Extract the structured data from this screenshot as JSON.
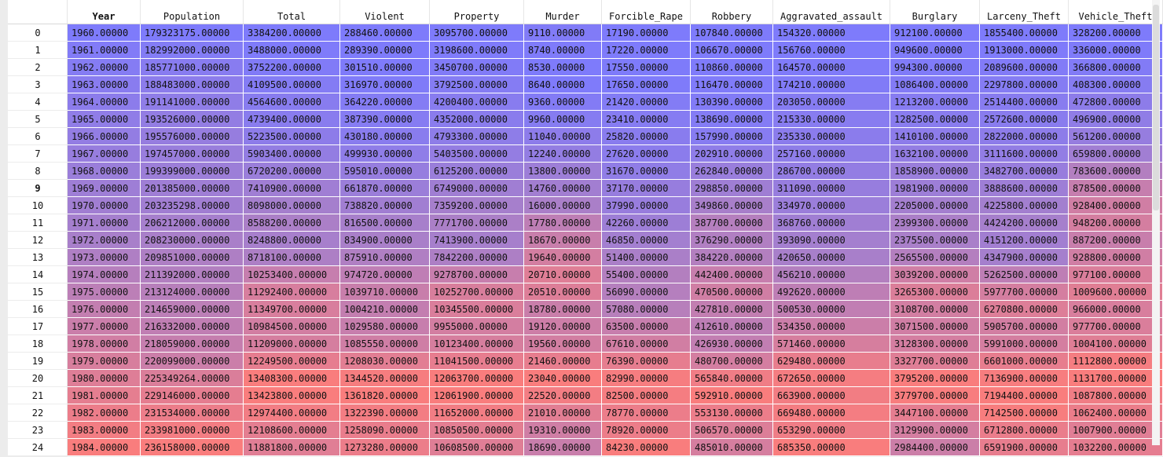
{
  "table": {
    "index_header": "",
    "columns": [
      "Year",
      "Population",
      "Total",
      "Violent",
      "Property",
      "Murder",
      "Forcible_Rape",
      "Robbery",
      "Aggravated_assault",
      "Burglary",
      "Larceny_Theft",
      "Vehicle_Theft"
    ],
    "bold_columns": [
      0
    ],
    "highlighted_row": 9,
    "colors": {
      "low": "#7e7bfb",
      "mid": "#a87fca",
      "high": "#f97d7d"
    },
    "rows": [
      {
        "index": "0",
        "cells": [
          "1960.00000",
          "179323175.00000",
          "3384200.00000",
          "288460.00000",
          "3095700.00000",
          "9110.00000",
          "17190.00000",
          "107840.00000",
          "154320.00000",
          "912100.00000",
          "1855400.00000",
          "328200.00000"
        ]
      },
      {
        "index": "1",
        "cells": [
          "1961.00000",
          "182992000.00000",
          "3488000.00000",
          "289390.00000",
          "3198600.00000",
          "8740.00000",
          "17220.00000",
          "106670.00000",
          "156760.00000",
          "949600.00000",
          "1913000.00000",
          "336000.00000"
        ]
      },
      {
        "index": "2",
        "cells": [
          "1962.00000",
          "185771000.00000",
          "3752200.00000",
          "301510.00000",
          "3450700.00000",
          "8530.00000",
          "17550.00000",
          "110860.00000",
          "164570.00000",
          "994300.00000",
          "2089600.00000",
          "366800.00000"
        ]
      },
      {
        "index": "3",
        "cells": [
          "1963.00000",
          "188483000.00000",
          "4109500.00000",
          "316970.00000",
          "3792500.00000",
          "8640.00000",
          "17650.00000",
          "116470.00000",
          "174210.00000",
          "1086400.00000",
          "2297800.00000",
          "408300.00000"
        ]
      },
      {
        "index": "4",
        "cells": [
          "1964.00000",
          "191141000.00000",
          "4564600.00000",
          "364220.00000",
          "4200400.00000",
          "9360.00000",
          "21420.00000",
          "130390.00000",
          "203050.00000",
          "1213200.00000",
          "2514400.00000",
          "472800.00000"
        ]
      },
      {
        "index": "5",
        "cells": [
          "1965.00000",
          "193526000.00000",
          "4739400.00000",
          "387390.00000",
          "4352000.00000",
          "9960.00000",
          "23410.00000",
          "138690.00000",
          "215330.00000",
          "1282500.00000",
          "2572600.00000",
          "496900.00000"
        ]
      },
      {
        "index": "6",
        "cells": [
          "1966.00000",
          "195576000.00000",
          "5223500.00000",
          "430180.00000",
          "4793300.00000",
          "11040.00000",
          "25820.00000",
          "157990.00000",
          "235330.00000",
          "1410100.00000",
          "2822000.00000",
          "561200.00000"
        ]
      },
      {
        "index": "7",
        "cells": [
          "1967.00000",
          "197457000.00000",
          "5903400.00000",
          "499930.00000",
          "5403500.00000",
          "12240.00000",
          "27620.00000",
          "202910.00000",
          "257160.00000",
          "1632100.00000",
          "3111600.00000",
          "659800.00000"
        ]
      },
      {
        "index": "8",
        "cells": [
          "1968.00000",
          "199399000.00000",
          "6720200.00000",
          "595010.00000",
          "6125200.00000",
          "13800.00000",
          "31670.00000",
          "262840.00000",
          "286700.00000",
          "1858900.00000",
          "3482700.00000",
          "783600.00000"
        ]
      },
      {
        "index": "9",
        "cells": [
          "1969.00000",
          "201385000.00000",
          "7410900.00000",
          "661870.00000",
          "6749000.00000",
          "14760.00000",
          "37170.00000",
          "298850.00000",
          "311090.00000",
          "1981900.00000",
          "3888600.00000",
          "878500.00000"
        ]
      },
      {
        "index": "10",
        "cells": [
          "1970.00000",
          "203235298.00000",
          "8098000.00000",
          "738820.00000",
          "7359200.00000",
          "16000.00000",
          "37990.00000",
          "349860.00000",
          "334970.00000",
          "2205000.00000",
          "4225800.00000",
          "928400.00000"
        ]
      },
      {
        "index": "11",
        "cells": [
          "1971.00000",
          "206212000.00000",
          "8588200.00000",
          "816500.00000",
          "7771700.00000",
          "17780.00000",
          "42260.00000",
          "387700.00000",
          "368760.00000",
          "2399300.00000",
          "4424200.00000",
          "948200.00000"
        ]
      },
      {
        "index": "12",
        "cells": [
          "1972.00000",
          "208230000.00000",
          "8248800.00000",
          "834900.00000",
          "7413900.00000",
          "18670.00000",
          "46850.00000",
          "376290.00000",
          "393090.00000",
          "2375500.00000",
          "4151200.00000",
          "887200.00000"
        ]
      },
      {
        "index": "13",
        "cells": [
          "1973.00000",
          "209851000.00000",
          "8718100.00000",
          "875910.00000",
          "7842200.00000",
          "19640.00000",
          "51400.00000",
          "384220.00000",
          "420650.00000",
          "2565500.00000",
          "4347900.00000",
          "928800.00000"
        ]
      },
      {
        "index": "14",
        "cells": [
          "1974.00000",
          "211392000.00000",
          "10253400.00000",
          "974720.00000",
          "9278700.00000",
          "20710.00000",
          "55400.00000",
          "442400.00000",
          "456210.00000",
          "3039200.00000",
          "5262500.00000",
          "977100.00000"
        ]
      },
      {
        "index": "15",
        "cells": [
          "1975.00000",
          "213124000.00000",
          "11292400.00000",
          "1039710.00000",
          "10252700.00000",
          "20510.00000",
          "56090.00000",
          "470500.00000",
          "492620.00000",
          "3265300.00000",
          "5977700.00000",
          "1009600.00000"
        ]
      },
      {
        "index": "16",
        "cells": [
          "1976.00000",
          "214659000.00000",
          "11349700.00000",
          "1004210.00000",
          "10345500.00000",
          "18780.00000",
          "57080.00000",
          "427810.00000",
          "500530.00000",
          "3108700.00000",
          "6270800.00000",
          "966000.00000"
        ]
      },
      {
        "index": "17",
        "cells": [
          "1977.00000",
          "216332000.00000",
          "10984500.00000",
          "1029580.00000",
          "9955000.00000",
          "19120.00000",
          "63500.00000",
          "412610.00000",
          "534350.00000",
          "3071500.00000",
          "5905700.00000",
          "977700.00000"
        ]
      },
      {
        "index": "18",
        "cells": [
          "1978.00000",
          "218059000.00000",
          "11209000.00000",
          "1085550.00000",
          "10123400.00000",
          "19560.00000",
          "67610.00000",
          "426930.00000",
          "571460.00000",
          "3128300.00000",
          "5991000.00000",
          "1004100.00000"
        ]
      },
      {
        "index": "19",
        "cells": [
          "1979.00000",
          "220099000.00000",
          "12249500.00000",
          "1208030.00000",
          "11041500.00000",
          "21460.00000",
          "76390.00000",
          "480700.00000",
          "629480.00000",
          "3327700.00000",
          "6601000.00000",
          "1112800.00000"
        ]
      },
      {
        "index": "20",
        "cells": [
          "1980.00000",
          "225349264.00000",
          "13408300.00000",
          "1344520.00000",
          "12063700.00000",
          "23040.00000",
          "82990.00000",
          "565840.00000",
          "672650.00000",
          "3795200.00000",
          "7136900.00000",
          "1131700.00000"
        ]
      },
      {
        "index": "21",
        "cells": [
          "1981.00000",
          "229146000.00000",
          "13423800.00000",
          "1361820.00000",
          "12061900.00000",
          "22520.00000",
          "82500.00000",
          "592910.00000",
          "663900.00000",
          "3779700.00000",
          "7194400.00000",
          "1087800.00000"
        ]
      },
      {
        "index": "22",
        "cells": [
          "1982.00000",
          "231534000.00000",
          "12974400.00000",
          "1322390.00000",
          "11652000.00000",
          "21010.00000",
          "78770.00000",
          "553130.00000",
          "669480.00000",
          "3447100.00000",
          "7142500.00000",
          "1062400.00000"
        ]
      },
      {
        "index": "23",
        "cells": [
          "1983.00000",
          "233981000.00000",
          "12108600.00000",
          "1258090.00000",
          "10850500.00000",
          "19310.00000",
          "78920.00000",
          "506570.00000",
          "653290.00000",
          "3129900.00000",
          "6712800.00000",
          "1007900.00000"
        ]
      },
      {
        "index": "24",
        "cells": [
          "1984.00000",
          "236158000.00000",
          "11881800.00000",
          "1273280.00000",
          "10608500.00000",
          "18690.00000",
          "84230.00000",
          "485010.00000",
          "685350.00000",
          "2984400.00000",
          "6591900.00000",
          "1032200.00000"
        ]
      }
    ]
  }
}
